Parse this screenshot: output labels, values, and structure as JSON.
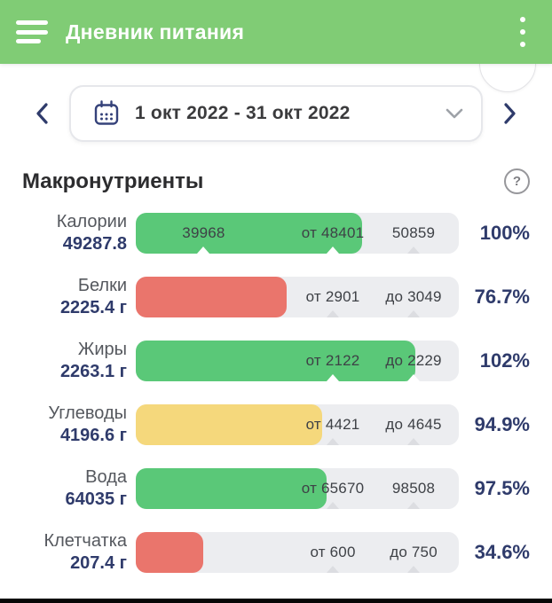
{
  "header": {
    "title": "Дневник питания",
    "menu_icon": "hamburger",
    "more_icon": "kebab-vertical"
  },
  "date_picker": {
    "range": "1 окт 2022 - 31 окт 2022",
    "prev_icon": "chevron-left",
    "next_icon": "chevron-right",
    "calendar_icon": "calendar",
    "expand_icon": "chevron-down"
  },
  "section": {
    "title": "Макронутриенты",
    "help_label": "?"
  },
  "colors": {
    "header_bg": "#80CC75",
    "green": "#5AC878",
    "red": "#EA756C",
    "yellow": "#F5D87C",
    "track": "#ECEDF0",
    "navy": "#2F3B6B",
    "notch_on_fill": "#FFFFFF",
    "notch_on_track": "#DCDDE1"
  },
  "rows": [
    {
      "name": "Калории",
      "value": "49287.8",
      "percent": "100%",
      "color": "green",
      "fill_pct": 70,
      "markers": [
        {
          "label": "39968",
          "pos": 21
        },
        {
          "label": "от 48401",
          "pos": 61
        },
        {
          "label": "50859",
          "pos": 86
        }
      ]
    },
    {
      "name": "Белки",
      "value": "2225.4 г",
      "percent": "76.7%",
      "color": "red",
      "fill_pct": 46.8,
      "markers": [
        {
          "label": "от 2901",
          "pos": 61
        },
        {
          "label": "до 3049",
          "pos": 86
        }
      ]
    },
    {
      "name": "Жиры",
      "value": "2263.1 г",
      "percent": "102%",
      "color": "green",
      "fill_pct": 86.5,
      "markers": [
        {
          "label": "от 2122",
          "pos": 61
        },
        {
          "label": "до 2229",
          "pos": 86
        }
      ]
    },
    {
      "name": "Углеводы",
      "value": "4196.6 г",
      "percent": "94.9%",
      "color": "yellow",
      "fill_pct": 57.8,
      "markers": [
        {
          "label": "от 4421",
          "pos": 61
        },
        {
          "label": "до 4645",
          "pos": 86
        }
      ]
    },
    {
      "name": "Вода",
      "value": "64035 г",
      "percent": "97.5%",
      "color": "green",
      "fill_pct": 59,
      "markers": [
        {
          "label": "от 65670",
          "pos": 61
        },
        {
          "label": "98508",
          "pos": 86
        }
      ]
    },
    {
      "name": "Клетчатка",
      "value": "207.4 г",
      "percent": "34.6%",
      "color": "red",
      "fill_pct": 21,
      "markers": [
        {
          "label": "от 600",
          "pos": 61
        },
        {
          "label": "до 750",
          "pos": 86
        }
      ]
    }
  ]
}
